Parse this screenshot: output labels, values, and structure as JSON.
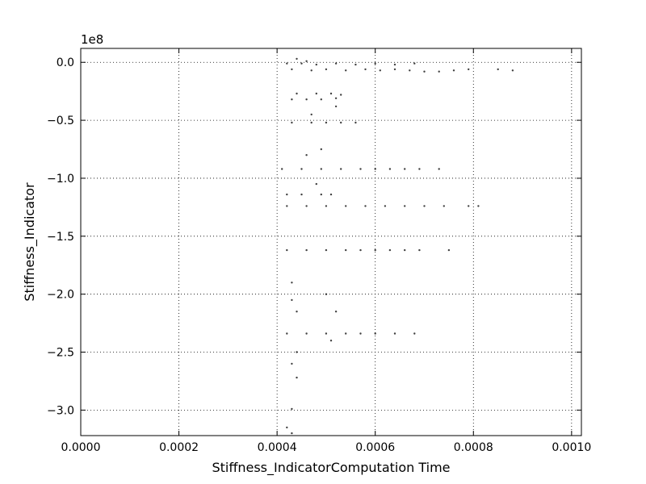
{
  "chart_data": {
    "type": "scatter",
    "title": "",
    "xlabel": "Stiffness_IndicatorComputation Time",
    "ylabel": "Stiffness_Indicator",
    "y_offset_label": "1e8",
    "xlim": [
      0.0,
      0.00102
    ],
    "ylim": [
      -3.22,
      0.12
    ],
    "x_ticks": [
      0.0,
      0.0002,
      0.0004,
      0.0006,
      0.0008,
      0.001
    ],
    "x_tick_labels": [
      "0.0000",
      "0.0002",
      "0.0004",
      "0.0006",
      "0.0008",
      "0.0010"
    ],
    "y_ticks": [
      0.0,
      -0.5,
      -1.0,
      -1.5,
      -2.0,
      -2.5,
      -3.0
    ],
    "y_tick_labels": [
      "0.0",
      "−0.5",
      "−1.0",
      "−1.5",
      "−2.0",
      "−2.5",
      "−3.0"
    ],
    "grid": true,
    "marker_color": "#000000",
    "y_units_note": "y values in units of 1e8",
    "series": [
      {
        "points": [
          [
            0.00042,
            -0.01
          ],
          [
            0.00045,
            -0.01
          ],
          [
            0.00048,
            -0.02
          ],
          [
            0.00052,
            -0.01
          ],
          [
            0.00056,
            -0.02
          ],
          [
            0.0006,
            -0.01
          ],
          [
            0.00064,
            -0.02
          ],
          [
            0.00068,
            -0.01
          ],
          [
            0.00043,
            -0.06
          ],
          [
            0.00047,
            -0.07
          ],
          [
            0.0005,
            -0.06
          ],
          [
            0.00054,
            -0.07
          ],
          [
            0.00058,
            -0.06
          ],
          [
            0.00061,
            -0.07
          ],
          [
            0.00064,
            -0.06
          ],
          [
            0.00067,
            -0.07
          ],
          [
            0.0007,
            -0.08
          ],
          [
            0.00073,
            -0.08
          ],
          [
            0.00076,
            -0.07
          ],
          [
            0.00079,
            -0.06
          ],
          [
            0.00085,
            -0.06
          ],
          [
            0.00088,
            -0.07
          ],
          [
            0.00044,
            0.03
          ],
          [
            0.00046,
            0.01
          ],
          [
            0.00044,
            -0.27
          ],
          [
            0.00048,
            -0.27
          ],
          [
            0.00051,
            -0.27
          ],
          [
            0.00053,
            -0.28
          ],
          [
            0.00043,
            -0.32
          ],
          [
            0.00046,
            -0.32
          ],
          [
            0.00049,
            -0.32
          ],
          [
            0.00052,
            -0.31
          ],
          [
            0.00043,
            -0.52
          ],
          [
            0.00047,
            -0.52
          ],
          [
            0.0005,
            -0.52
          ],
          [
            0.00053,
            -0.52
          ],
          [
            0.00056,
            -0.52
          ],
          [
            0.00041,
            -0.92
          ],
          [
            0.00045,
            -0.92
          ],
          [
            0.00049,
            -0.92
          ],
          [
            0.00053,
            -0.92
          ],
          [
            0.00057,
            -0.92
          ],
          [
            0.0006,
            -0.92
          ],
          [
            0.00063,
            -0.92
          ],
          [
            0.00066,
            -0.92
          ],
          [
            0.00069,
            -0.92
          ],
          [
            0.00073,
            -0.92
          ],
          [
            0.00042,
            -1.14
          ],
          [
            0.00045,
            -1.14
          ],
          [
            0.00049,
            -1.14
          ],
          [
            0.00051,
            -1.14
          ],
          [
            0.00042,
            -1.24
          ],
          [
            0.00046,
            -1.24
          ],
          [
            0.0005,
            -1.24
          ],
          [
            0.00054,
            -1.24
          ],
          [
            0.00058,
            -1.24
          ],
          [
            0.00062,
            -1.24
          ],
          [
            0.00066,
            -1.24
          ],
          [
            0.0007,
            -1.24
          ],
          [
            0.00074,
            -1.24
          ],
          [
            0.00079,
            -1.24
          ],
          [
            0.00081,
            -1.24
          ],
          [
            0.00042,
            -1.62
          ],
          [
            0.00046,
            -1.62
          ],
          [
            0.0005,
            -1.62
          ],
          [
            0.00054,
            -1.62
          ],
          [
            0.00057,
            -1.62
          ],
          [
            0.0006,
            -1.62
          ],
          [
            0.00063,
            -1.62
          ],
          [
            0.00066,
            -1.62
          ],
          [
            0.00069,
            -1.62
          ],
          [
            0.00075,
            -1.62
          ],
          [
            0.00042,
            -2.34
          ],
          [
            0.00046,
            -2.34
          ],
          [
            0.0005,
            -2.34
          ],
          [
            0.00054,
            -2.34
          ],
          [
            0.00057,
            -2.34
          ],
          [
            0.0006,
            -2.34
          ],
          [
            0.00064,
            -2.34
          ],
          [
            0.00068,
            -2.34
          ],
          [
            0.00043,
            -1.9
          ],
          [
            0.00043,
            -2.05
          ],
          [
            0.00044,
            -2.15
          ],
          [
            0.00044,
            -2.5
          ],
          [
            0.00043,
            -2.6
          ],
          [
            0.00044,
            -2.72
          ],
          [
            0.00043,
            -2.99
          ],
          [
            0.00042,
            -3.15
          ],
          [
            0.00043,
            -3.2
          ],
          [
            0.0005,
            -2.0
          ],
          [
            0.00052,
            -2.15
          ],
          [
            0.00051,
            -2.4
          ],
          [
            0.00046,
            -0.8
          ],
          [
            0.00049,
            -0.75
          ],
          [
            0.00047,
            -0.45
          ],
          [
            0.00052,
            -0.38
          ],
          [
            0.00048,
            -1.05
          ]
        ]
      }
    ]
  }
}
